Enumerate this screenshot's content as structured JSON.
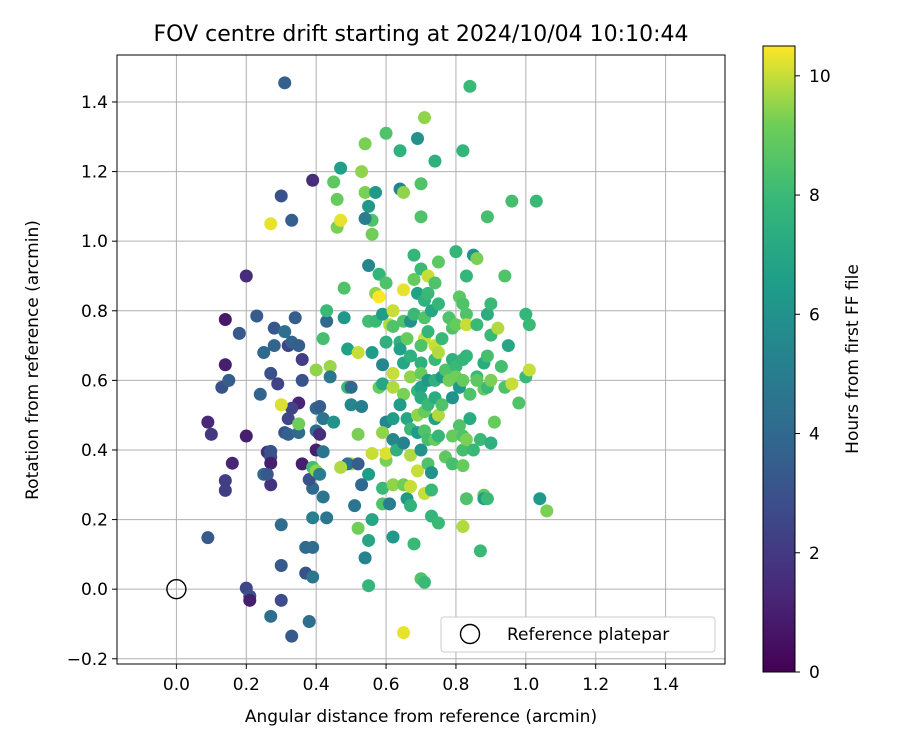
{
  "chart_data": {
    "type": "scatter",
    "title": "FOV centre drift starting at 2024/10/04 10:10:44",
    "xlabel": "Angular distance from reference (arcmin)",
    "ylabel": "Rotation from reference (arcmin)",
    "xlim": [
      -0.17,
      1.57
    ],
    "ylim": [
      -0.215,
      1.535
    ],
    "xticks": [
      0.0,
      0.2,
      0.4,
      0.6,
      0.8,
      1.0,
      1.2,
      1.4
    ],
    "xtick_labels": [
      "0.0",
      "0.2",
      "0.4",
      "0.6",
      "0.8",
      "1.0",
      "1.2",
      "1.4"
    ],
    "yticks": [
      -0.2,
      0.0,
      0.2,
      0.4,
      0.6,
      0.8,
      1.0,
      1.2,
      1.4
    ],
    "ytick_labels": [
      "−0.2",
      "0.0",
      "0.2",
      "0.4",
      "0.6",
      "0.8",
      "1.0",
      "1.2",
      "1.4"
    ],
    "grid": true,
    "legend": {
      "placement": "lower-right",
      "entries": [
        "Reference platepar"
      ]
    },
    "reference_point": {
      "x": 0.0,
      "y": 0.0,
      "label": "Reference platepar"
    },
    "colorbar": {
      "label": "Hours from first FF file",
      "colormap": "viridis",
      "range": [
        0,
        10.5
      ],
      "ticks": [
        0,
        2,
        4,
        6,
        8,
        10
      ],
      "tick_labels": [
        "0",
        "2",
        "4",
        "6",
        "8",
        "10"
      ]
    },
    "points": [
      [
        0.31,
        1.455,
        3.6
      ],
      [
        0.3,
        1.13,
        3.0
      ],
      [
        0.33,
        1.06,
        3.6
      ],
      [
        0.39,
        1.175,
        1.5
      ],
      [
        0.2,
        0.9,
        1.5
      ],
      [
        0.14,
        0.775,
        0.8
      ],
      [
        0.18,
        0.735,
        3.3
      ],
      [
        0.23,
        0.785,
        3.4
      ],
      [
        0.14,
        0.645,
        1.0
      ],
      [
        0.13,
        0.58,
        3.0
      ],
      [
        0.15,
        0.6,
        3.5
      ],
      [
        0.09,
        0.48,
        1.3
      ],
      [
        0.1,
        0.445,
        2.0
      ],
      [
        0.2,
        0.44,
        1.0
      ],
      [
        0.16,
        0.362,
        1.2
      ],
      [
        0.14,
        0.312,
        2.2
      ],
      [
        0.14,
        0.284,
        2.2
      ],
      [
        0.09,
        0.148,
        3.3
      ],
      [
        0.2,
        0.003,
        2.5
      ],
      [
        0.21,
        -0.02,
        2.9
      ],
      [
        0.21,
        -0.032,
        1.0
      ],
      [
        0.27,
        -0.078,
        4.3
      ],
      [
        0.3,
        -0.032,
        2.8
      ],
      [
        0.33,
        -0.135,
        3.3
      ],
      [
        0.38,
        -0.093,
        4.3
      ],
      [
        0.3,
        0.068,
        3.3
      ],
      [
        0.37,
        0.046,
        3.0
      ],
      [
        0.39,
        0.035,
        4.6
      ],
      [
        0.37,
        0.12,
        4.1
      ],
      [
        0.39,
        0.12,
        4.2
      ],
      [
        0.3,
        0.185,
        4.2
      ],
      [
        0.25,
        0.33,
        4.2
      ],
      [
        0.26,
        0.394,
        1.5
      ],
      [
        0.27,
        0.396,
        3.0
      ],
      [
        0.27,
        0.38,
        3.0
      ],
      [
        0.27,
        0.362,
        1.0
      ],
      [
        0.27,
        0.3,
        1.8
      ],
      [
        0.26,
        0.33,
        3.2
      ],
      [
        0.29,
        0.59,
        2.4
      ],
      [
        0.27,
        0.62,
        3.0
      ],
      [
        0.28,
        0.75,
        3.2
      ],
      [
        0.31,
        0.74,
        4.3
      ],
      [
        0.32,
        0.7,
        2.4
      ],
      [
        0.33,
        0.71,
        3.8
      ],
      [
        0.34,
        0.78,
        3.5
      ],
      [
        0.35,
        0.7,
        3.5
      ],
      [
        0.36,
        0.66,
        2.2
      ],
      [
        0.36,
        0.6,
        3.0
      ],
      [
        0.35,
        0.535,
        1.2
      ],
      [
        0.33,
        0.52,
        2.4
      ],
      [
        0.32,
        0.49,
        2.5
      ],
      [
        0.31,
        0.45,
        3.0
      ],
      [
        0.32,
        0.445,
        3.6
      ],
      [
        0.35,
        0.45,
        4.1
      ],
      [
        0.35,
        0.475,
        9.2
      ],
      [
        0.36,
        0.36,
        1.0
      ],
      [
        0.39,
        0.29,
        4.0
      ],
      [
        0.38,
        0.315,
        3.0
      ],
      [
        0.39,
        0.35,
        8.2
      ],
      [
        0.4,
        0.4,
        1.0
      ],
      [
        0.4,
        0.52,
        4.0
      ],
      [
        0.41,
        0.525,
        3.5
      ],
      [
        0.42,
        0.49,
        4.6
      ],
      [
        0.4,
        0.455,
        4.1
      ],
      [
        0.41,
        0.445,
        1.5
      ],
      [
        0.42,
        0.395,
        4.6
      ],
      [
        0.4,
        0.34,
        9.5
      ],
      [
        0.41,
        0.33,
        5.0
      ],
      [
        0.39,
        0.205,
        5.0
      ],
      [
        0.43,
        0.205,
        4.6
      ],
      [
        0.42,
        0.265,
        4.6
      ],
      [
        0.3,
        0.53,
        10.2
      ],
      [
        0.27,
        1.05,
        10.3
      ],
      [
        0.24,
        0.56,
        3.8
      ],
      [
        0.25,
        0.68,
        4.0
      ],
      [
        0.28,
        0.7,
        3.8
      ],
      [
        0.4,
        0.63,
        9.5
      ],
      [
        0.42,
        0.72,
        8.3
      ],
      [
        0.43,
        0.77,
        4.0
      ],
      [
        0.44,
        0.64,
        9.6
      ],
      [
        0.44,
        0.61,
        4.6
      ],
      [
        0.45,
        0.48,
        6.0
      ],
      [
        0.43,
        0.8,
        8.0
      ],
      [
        0.45,
        1.17,
        8.8
      ],
      [
        0.46,
        1.04,
        9.3
      ],
      [
        0.47,
        1.21,
        6.6
      ],
      [
        0.46,
        1.12,
        9.0
      ],
      [
        0.47,
        1.06,
        10.3
      ],
      [
        0.48,
        0.78,
        6.3
      ],
      [
        0.48,
        0.865,
        8.5
      ],
      [
        0.49,
        0.58,
        8.0
      ],
      [
        0.49,
        0.69,
        6.7
      ],
      [
        0.5,
        0.58,
        4.0
      ],
      [
        0.5,
        0.53,
        5.5
      ],
      [
        0.5,
        0.36,
        9.8
      ],
      [
        0.49,
        0.36,
        4.6
      ],
      [
        0.52,
        0.36,
        3.5
      ],
      [
        0.51,
        0.24,
        4.6
      ],
      [
        0.53,
        0.3,
        4.0
      ],
      [
        0.52,
        0.445,
        9.3
      ],
      [
        0.52,
        0.175,
        9.2
      ],
      [
        0.53,
        0.525,
        5.0
      ],
      [
        0.54,
        0.09,
        5.3
      ],
      [
        0.55,
        0.14,
        7.0
      ],
      [
        0.55,
        0.01,
        7.8
      ],
      [
        0.56,
        0.2,
        7.0
      ],
      [
        0.55,
        0.33,
        6.5
      ],
      [
        0.56,
        0.39,
        10.0
      ],
      [
        0.56,
        0.68,
        6.5
      ],
      [
        0.55,
        0.77,
        8.2
      ],
      [
        0.52,
        0.68,
        10.0
      ],
      [
        0.54,
        1.28,
        9.3
      ],
      [
        0.53,
        1.2,
        9.5
      ],
      [
        0.54,
        1.14,
        9.3
      ],
      [
        0.55,
        1.1,
        6.3
      ],
      [
        0.56,
        1.02,
        9.2
      ],
      [
        0.56,
        1.06,
        8.5
      ],
      [
        0.54,
        1.065,
        5.0
      ],
      [
        0.57,
        1.14,
        6.3
      ],
      [
        0.57,
        0.77,
        8.0
      ],
      [
        0.57,
        0.85,
        9.5
      ],
      [
        0.55,
        0.93,
        5.5
      ],
      [
        0.58,
        0.905,
        7.8
      ],
      [
        0.58,
        0.84,
        10.5
      ],
      [
        0.59,
        0.79,
        6.5
      ],
      [
        0.58,
        0.58,
        9.0
      ],
      [
        0.59,
        0.645,
        5.5
      ],
      [
        0.6,
        0.71,
        7.5
      ],
      [
        0.59,
        0.59,
        7.0
      ],
      [
        0.6,
        0.48,
        5.5
      ],
      [
        0.59,
        0.45,
        9.5
      ],
      [
        0.6,
        0.37,
        9.3
      ],
      [
        0.6,
        0.39,
        10.2
      ],
      [
        0.59,
        0.29,
        8.0
      ],
      [
        0.59,
        0.245,
        8.5
      ],
      [
        0.61,
        0.245,
        5.0
      ],
      [
        0.6,
        1.31,
        8.5
      ],
      [
        0.6,
        0.88,
        8.5
      ],
      [
        0.61,
        0.76,
        9.8
      ],
      [
        0.62,
        0.755,
        8.5
      ],
      [
        0.62,
        0.8,
        10.0
      ],
      [
        0.62,
        0.62,
        10.0
      ],
      [
        0.62,
        0.58,
        9.8
      ],
      [
        0.62,
        0.49,
        6.5
      ],
      [
        0.62,
        0.43,
        5.5
      ],
      [
        0.63,
        0.4,
        7.5
      ],
      [
        0.62,
        0.3,
        9.5
      ],
      [
        0.62,
        0.15,
        6.3
      ],
      [
        0.64,
        1.15,
        5.3
      ],
      [
        0.64,
        1.26,
        7.6
      ],
      [
        0.65,
        1.14,
        9.5
      ],
      [
        0.65,
        0.86,
        10.3
      ],
      [
        0.65,
        0.77,
        8.5
      ],
      [
        0.64,
        0.71,
        7.5
      ],
      [
        0.64,
        0.69,
        6.7
      ],
      [
        0.65,
        0.65,
        7.0
      ],
      [
        0.65,
        0.56,
        9.3
      ],
      [
        0.64,
        0.53,
        6.5
      ],
      [
        0.65,
        0.42,
        5.3
      ],
      [
        0.65,
        0.3,
        9.2
      ],
      [
        0.66,
        0.26,
        6.3
      ],
      [
        0.65,
        -0.125,
        10.3
      ],
      [
        0.66,
        0.72,
        9.0
      ],
      [
        0.67,
        0.77,
        6.0
      ],
      [
        0.67,
        0.67,
        7.5
      ],
      [
        0.67,
        0.61,
        9.5
      ],
      [
        0.66,
        0.49,
        7.0
      ],
      [
        0.67,
        0.46,
        8.0
      ],
      [
        0.67,
        0.385,
        9.8
      ],
      [
        0.67,
        0.295,
        10.0
      ],
      [
        0.67,
        0.24,
        7.6
      ],
      [
        0.68,
        0.96,
        7.8
      ],
      [
        0.68,
        0.89,
        9.0
      ],
      [
        0.69,
        0.85,
        6.7
      ],
      [
        0.68,
        0.79,
        8.0
      ],
      [
        0.69,
        0.57,
        7.8
      ],
      [
        0.69,
        0.5,
        9.5
      ],
      [
        0.69,
        0.45,
        6.5
      ],
      [
        0.69,
        0.34,
        10.0
      ],
      [
        0.68,
        0.13,
        8.0
      ],
      [
        0.69,
        1.295,
        6.0
      ],
      [
        0.7,
        1.165,
        8.5
      ],
      [
        0.7,
        1.07,
        8.5
      ],
      [
        0.7,
        0.92,
        8.0
      ],
      [
        0.71,
        0.83,
        7.6
      ],
      [
        0.71,
        0.78,
        8.5
      ],
      [
        0.71,
        0.72,
        10.0
      ],
      [
        0.7,
        0.7,
        8.5
      ],
      [
        0.7,
        0.65,
        7.5
      ],
      [
        0.7,
        0.62,
        9.0
      ],
      [
        0.7,
        0.58,
        6.8
      ],
      [
        0.7,
        0.55,
        7.3
      ],
      [
        0.71,
        0.51,
        9.0
      ],
      [
        0.71,
        0.455,
        8.5
      ],
      [
        0.7,
        0.4,
        6.0
      ],
      [
        0.71,
        0.275,
        10.0
      ],
      [
        0.7,
        0.03,
        8.5
      ],
      [
        0.71,
        0.02,
        8.0
      ],
      [
        0.71,
        1.355,
        9.5
      ],
      [
        0.72,
        0.9,
        10.0
      ],
      [
        0.72,
        0.85,
        8.0
      ],
      [
        0.72,
        0.74,
        7.8
      ],
      [
        0.72,
        0.6,
        6.3
      ],
      [
        0.72,
        0.53,
        8.0
      ],
      [
        0.72,
        0.43,
        8.3
      ],
      [
        0.72,
        0.36,
        8.5
      ],
      [
        0.73,
        0.335,
        6.0
      ],
      [
        0.73,
        0.285,
        8.0
      ],
      [
        0.73,
        0.21,
        7.8
      ],
      [
        0.73,
        0.8,
        7.0
      ],
      [
        0.74,
        1.23,
        7.5
      ],
      [
        0.74,
        0.88,
        8.5
      ],
      [
        0.74,
        0.7,
        10.0
      ],
      [
        0.74,
        0.66,
        8.0
      ],
      [
        0.74,
        0.6,
        7.5
      ],
      [
        0.74,
        0.55,
        7.3
      ],
      [
        0.74,
        0.49,
        6.7
      ],
      [
        0.74,
        0.43,
        9.0
      ],
      [
        0.75,
        0.94,
        8.8
      ],
      [
        0.75,
        0.82,
        7.8
      ],
      [
        0.75,
        0.68,
        9.8
      ],
      [
        0.75,
        0.5,
        9.8
      ],
      [
        0.75,
        0.44,
        7.8
      ],
      [
        0.75,
        0.19,
        8.0
      ],
      [
        0.76,
        0.72,
        8.0
      ],
      [
        0.76,
        0.61,
        6.3
      ],
      [
        0.76,
        0.53,
        8.5
      ],
      [
        0.77,
        0.38,
        8.8
      ],
      [
        0.77,
        0.63,
        8.5
      ],
      [
        0.78,
        0.6,
        9.2
      ],
      [
        0.78,
        0.78,
        8.5
      ],
      [
        0.79,
        0.75,
        8.5
      ],
      [
        0.79,
        0.66,
        7.5
      ],
      [
        0.79,
        0.55,
        6.0
      ],
      [
        0.79,
        0.44,
        9.0
      ],
      [
        0.79,
        0.36,
        8.3
      ],
      [
        0.8,
        0.97,
        7.8
      ],
      [
        0.8,
        0.76,
        9.0
      ],
      [
        0.8,
        0.64,
        8.0
      ],
      [
        0.8,
        0.61,
        9.2
      ],
      [
        0.81,
        0.84,
        8.8
      ],
      [
        0.81,
        0.58,
        6.3
      ],
      [
        0.81,
        0.47,
        8.5
      ],
      [
        0.82,
        1.26,
        7.8
      ],
      [
        0.82,
        0.82,
        8.5
      ],
      [
        0.82,
        0.66,
        7.8
      ],
      [
        0.82,
        0.6,
        9.0
      ],
      [
        0.82,
        0.44,
        8.5
      ],
      [
        0.82,
        0.4,
        8.3
      ],
      [
        0.82,
        0.355,
        9.0
      ],
      [
        0.82,
        0.18,
        9.8
      ],
      [
        0.83,
        0.9,
        7.8
      ],
      [
        0.83,
        0.79,
        8.5
      ],
      [
        0.83,
        0.76,
        10.0
      ],
      [
        0.83,
        0.67,
        7.8
      ],
      [
        0.83,
        0.43,
        9.3
      ],
      [
        0.83,
        0.26,
        8.5
      ],
      [
        0.84,
        1.445,
        8.0
      ],
      [
        0.84,
        0.56,
        8.5
      ],
      [
        0.84,
        0.49,
        7.3
      ],
      [
        0.85,
        0.96,
        6.0
      ],
      [
        0.85,
        0.4,
        8.0
      ],
      [
        0.86,
        0.95,
        9.3
      ],
      [
        0.86,
        0.76,
        8.0
      ],
      [
        0.86,
        0.61,
        8.0
      ],
      [
        0.87,
        0.11,
        8.0
      ],
      [
        0.87,
        0.43,
        8.0
      ],
      [
        0.88,
        0.65,
        7.3
      ],
      [
        0.88,
        0.575,
        9.0
      ],
      [
        0.88,
        0.27,
        8.8
      ],
      [
        0.88,
        0.26,
        6.5
      ],
      [
        0.89,
        1.07,
        8.3
      ],
      [
        0.89,
        0.79,
        7.3
      ],
      [
        0.89,
        0.67,
        8.3
      ],
      [
        0.89,
        0.58,
        8.0
      ],
      [
        0.9,
        0.82,
        8.0
      ],
      [
        0.9,
        0.73,
        8.0
      ],
      [
        0.9,
        0.6,
        9.3
      ],
      [
        0.9,
        0.42,
        7.5
      ],
      [
        0.91,
        0.48,
        9.0
      ],
      [
        0.92,
        0.75,
        9.8
      ],
      [
        0.93,
        0.64,
        8.3
      ],
      [
        0.94,
        0.9,
        8.5
      ],
      [
        0.94,
        0.58,
        8.5
      ],
      [
        0.95,
        0.7,
        7.0
      ],
      [
        0.96,
        1.115,
        8.3
      ],
      [
        0.96,
        0.59,
        10.0
      ],
      [
        0.98,
        0.535,
        8.5
      ],
      [
        1.0,
        0.61,
        8.0
      ],
      [
        1.0,
        0.79,
        7.8
      ],
      [
        1.01,
        0.63,
        10.0
      ],
      [
        1.01,
        0.76,
        8.0
      ],
      [
        1.03,
        1.115,
        8.0
      ],
      [
        1.04,
        0.26,
        6.3
      ],
      [
        1.06,
        0.225,
        9.3
      ],
      [
        0.89,
        0.26,
        8.0
      ],
      [
        0.86,
        0.6,
        8.8
      ],
      [
        0.47,
        0.35,
        9.8
      ]
    ]
  }
}
